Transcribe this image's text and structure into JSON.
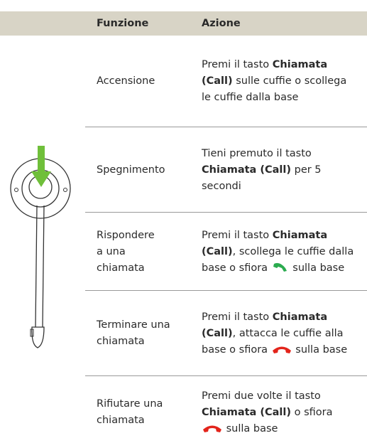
{
  "header": {
    "function": "Funzione",
    "action": "Azione"
  },
  "rows": [
    {
      "function": "Accensione",
      "action": [
        "Premi il tasto ",
        "Chiamata (Call)",
        " sulle cuffie o scollega le cuffie dalla base"
      ]
    },
    {
      "function": "Spegnimento",
      "action": [
        "Tieni premuto il tasto ",
        "Chiamata (Call)",
        " per 5 secondi"
      ]
    },
    {
      "function": "Rispondere a una chiamata",
      "action": [
        "Premi il tasto ",
        "Chiamata (Call)",
        ", scollega le cuffie dalla base o sfiora ",
        " sulla base"
      ]
    },
    {
      "function": "Terminare una chiamata",
      "action": [
        "Premi il tasto ",
        "Chiamata (Call)",
        ", attacca le cuffie alla base o sfiora ",
        " sulla base"
      ]
    },
    {
      "function": "Rifiutare una chiamata",
      "action": [
        "Premi due volte il tasto ",
        "Chiamata (Call)",
        " o sfiora ",
        " sulla base"
      ]
    }
  ]
}
